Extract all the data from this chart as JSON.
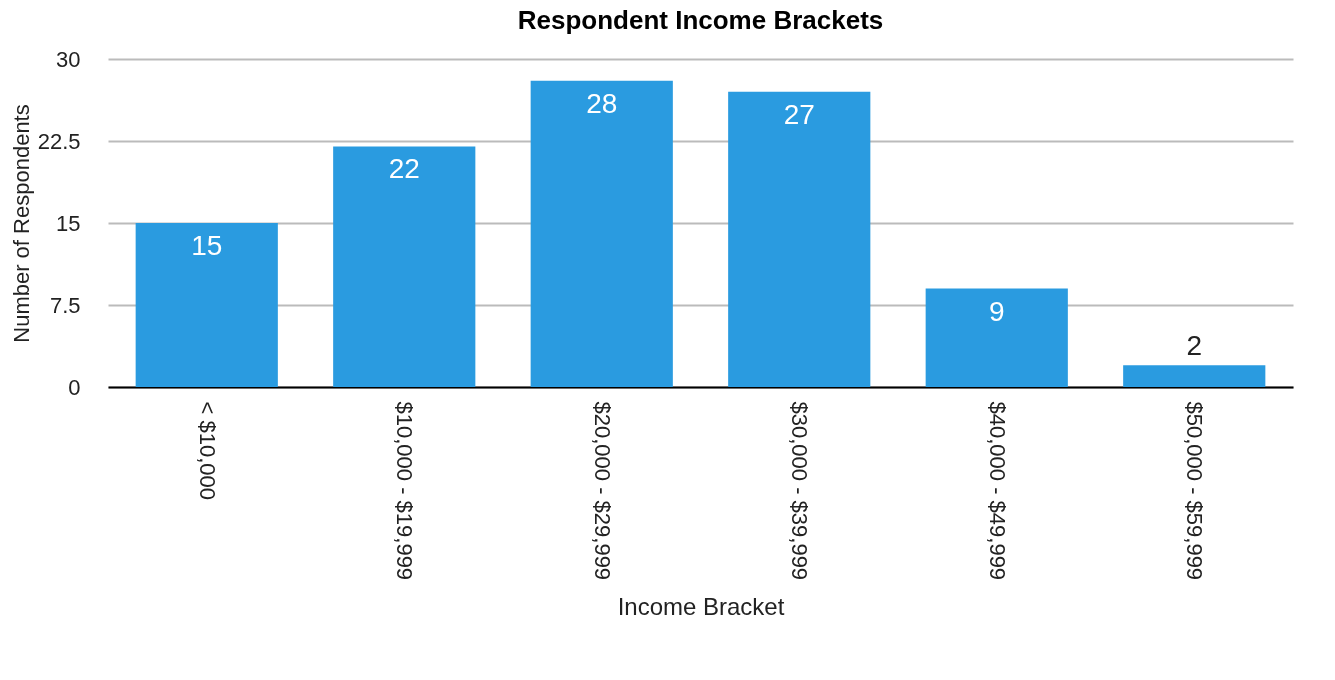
{
  "chart_data": {
    "type": "bar",
    "title": "Respondent Income Brackets",
    "xlabel": "Income Bracket",
    "ylabel": "Number of Respondents",
    "categories": [
      "< $10,000",
      "$10,000 - $19,999",
      "$20,000 - $29,999",
      "$30,000 - $39,999",
      "$40,000 - $49,999",
      "$50,000 - $59,999"
    ],
    "values": [
      15,
      22,
      28,
      27,
      9,
      2
    ],
    "color": "#2a9be0",
    "ylim": [
      0,
      30
    ],
    "yticks": [
      0,
      7.5,
      15,
      22.5,
      30
    ],
    "grid": "y",
    "data_labels": true
  }
}
